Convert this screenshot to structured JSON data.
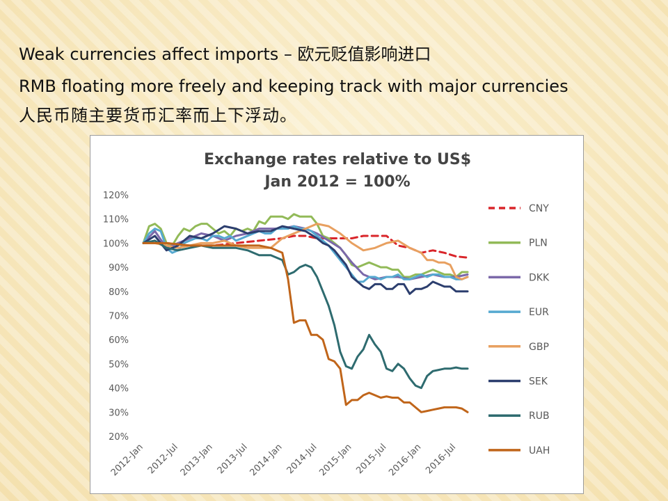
{
  "slide": {
    "line1": "Weak currencies affect imports – 欧元贬值影响进口",
    "line2": "RMB floating more freely and keeping track with major currencies",
    "line3": "人民币随主要货币汇率而上下浮动。"
  },
  "chart_data": {
    "type": "line",
    "title": "Exchange rates relative to US$",
    "subtitle": "Jan 2012 = 100%",
    "ylim": [
      20,
      120
    ],
    "yticks": [
      {
        "v": 20,
        "label": "20%"
      },
      {
        "v": 30,
        "label": "30%"
      },
      {
        "v": 40,
        "label": "40%"
      },
      {
        "v": 50,
        "label": "50%"
      },
      {
        "v": 60,
        "label": "60%"
      },
      {
        "v": 70,
        "label": "70%"
      },
      {
        "v": 80,
        "label": "80%"
      },
      {
        "v": 90,
        "label": "90%"
      },
      {
        "v": 100,
        "label": "100%"
      },
      {
        "v": 110,
        "label": "110%"
      },
      {
        "v": 120,
        "label": "120%"
      }
    ],
    "xticks": [
      {
        "t": 0,
        "label": "2012-Jan"
      },
      {
        "t": 6,
        "label": "2012-Jul"
      },
      {
        "t": 12,
        "label": "2013-Jan"
      },
      {
        "t": 18,
        "label": "2013-Jul"
      },
      {
        "t": 24,
        "label": "2014-Jan"
      },
      {
        "t": 30,
        "label": "2014-Jul"
      },
      {
        "t": 36,
        "label": "2015-Jan"
      },
      {
        "t": 42,
        "label": "2015-Jul"
      },
      {
        "t": 48,
        "label": "2016-Jan"
      },
      {
        "t": 54,
        "label": "2016-Jul"
      }
    ],
    "xlim": [
      0,
      56
    ],
    "grid": false,
    "legend": "right",
    "series": [
      {
        "name": "CNY",
        "color": "#d9252a",
        "dash": true,
        "t": [
          0,
          4,
          8,
          12,
          16,
          20,
          24,
          26,
          28,
          30,
          32,
          34,
          36,
          38,
          40,
          42,
          44,
          46,
          48,
          50,
          52,
          54,
          56
        ],
        "values": [
          100,
          100,
          99,
          99,
          100,
          101,
          102,
          103,
          103,
          102,
          102,
          102,
          102,
          103,
          103,
          103,
          99,
          98,
          96,
          97,
          96,
          94.5,
          94
        ]
      },
      {
        "name": "PLN",
        "color": "#92ba58",
        "t": [
          0,
          1,
          2,
          3,
          4,
          5,
          6,
          7,
          8,
          9,
          10,
          11,
          12,
          13,
          14,
          15,
          16,
          17,
          18,
          19,
          20,
          21,
          22,
          23,
          24,
          25,
          26,
          27,
          28,
          29,
          30,
          31,
          32,
          33,
          34,
          35,
          36,
          37,
          38,
          39,
          40,
          41,
          42,
          43,
          44,
          45,
          46,
          47,
          48,
          49,
          50,
          51,
          52,
          53,
          54,
          55,
          56
        ],
        "values": [
          100,
          107,
          108,
          106,
          100,
          99,
          103,
          106,
          105,
          107,
          108,
          108,
          106,
          104,
          105,
          103,
          106,
          105,
          106,
          105,
          109,
          108,
          111,
          111,
          111,
          110,
          112,
          111,
          111,
          111,
          108,
          103,
          102,
          100,
          98,
          95,
          91,
          90,
          91,
          92,
          91,
          90,
          90,
          89,
          89,
          86,
          86,
          87,
          87,
          88,
          89,
          88,
          87,
          87,
          86,
          88,
          88
        ]
      },
      {
        "name": "DKK",
        "color": "#7b68a9",
        "t": [
          0,
          2,
          4,
          6,
          8,
          10,
          12,
          14,
          16,
          18,
          20,
          22,
          24,
          26,
          28,
          30,
          32,
          34,
          36,
          38,
          40,
          42,
          44,
          46,
          48,
          50,
          52,
          54,
          56
        ],
        "values": [
          100,
          105,
          98,
          100,
          102,
          104,
          103,
          101,
          103,
          104,
          106,
          106,
          106,
          107,
          106,
          104,
          101,
          98,
          92,
          87,
          85,
          86,
          86,
          85,
          86,
          87,
          86,
          86,
          87
        ]
      },
      {
        "name": "EUR",
        "color": "#56a9d0",
        "t": [
          0,
          1,
          2,
          3,
          4,
          5,
          6,
          7,
          8,
          9,
          10,
          11,
          12,
          13,
          14,
          15,
          16,
          17,
          18,
          19,
          20,
          21,
          22,
          23,
          24,
          25,
          26,
          27,
          28,
          29,
          30,
          31,
          32,
          33,
          34,
          35,
          36,
          37,
          38,
          39,
          40,
          41,
          42,
          43,
          44,
          45,
          46,
          47,
          48,
          49,
          50,
          51,
          52,
          53,
          54,
          55,
          56
        ],
        "values": [
          100,
          104,
          106,
          105,
          98,
          96,
          97,
          100,
          101,
          102,
          102,
          101,
          103,
          103,
          102,
          103,
          101,
          102,
          103,
          104,
          105,
          104,
          104,
          106,
          106,
          106,
          107,
          106,
          106,
          105,
          103,
          101,
          99,
          96,
          93,
          90,
          87,
          84,
          84,
          86,
          86,
          85,
          86,
          86,
          87,
          85,
          85,
          86,
          87,
          86,
          87,
          87,
          86,
          86,
          85,
          85,
          86
        ]
      },
      {
        "name": "GBP",
        "color": "#e8a060",
        "t": [
          0,
          2,
          4,
          6,
          8,
          10,
          12,
          14,
          16,
          18,
          20,
          22,
          24,
          26,
          28,
          30,
          32,
          34,
          36,
          38,
          40,
          42,
          44,
          46,
          48,
          49,
          50,
          51,
          52,
          53,
          54,
          55,
          56
        ],
        "values": [
          100,
          100,
          99,
          98,
          99,
          100,
          100,
          101,
          99,
          98,
          98,
          98,
          102,
          104,
          106,
          108,
          107,
          104,
          100,
          97,
          98,
          100,
          101,
          98,
          96,
          93,
          93,
          92,
          92,
          91,
          86,
          85,
          86
        ]
      },
      {
        "name": "SEK",
        "color": "#2c3e6e",
        "t": [
          0,
          2,
          4,
          6,
          8,
          10,
          12,
          14,
          16,
          18,
          20,
          22,
          24,
          26,
          28,
          30,
          31,
          32,
          33,
          34,
          35,
          36,
          37,
          38,
          39,
          40,
          41,
          42,
          43,
          44,
          45,
          46,
          47,
          48,
          49,
          50,
          51,
          52,
          53,
          54,
          55,
          56
        ],
        "values": [
          100,
          103,
          97,
          99,
          103,
          102,
          104,
          107,
          106,
          104,
          105,
          105,
          107,
          106,
          105,
          102,
          100,
          99,
          97,
          94,
          91,
          86,
          84,
          82,
          81,
          83,
          83,
          81,
          81,
          83,
          83,
          79,
          81,
          81,
          82,
          84,
          83,
          82,
          82,
          80,
          80,
          80
        ]
      },
      {
        "name": "RUB",
        "color": "#2e6b6f",
        "t": [
          0,
          2,
          4,
          6,
          8,
          10,
          12,
          14,
          16,
          18,
          20,
          22,
          24,
          25,
          26,
          27,
          28,
          29,
          30,
          31,
          32,
          33,
          34,
          35,
          36,
          37,
          38,
          39,
          40,
          41,
          42,
          43,
          44,
          45,
          46,
          47,
          48,
          49,
          50,
          51,
          52,
          53,
          54,
          55,
          56
        ],
        "values": [
          100,
          101,
          98,
          97,
          98,
          99,
          98,
          98,
          98,
          97,
          95,
          95,
          93,
          87,
          88,
          90,
          91,
          90,
          86,
          80,
          74,
          66,
          55,
          49,
          48,
          53,
          56,
          62,
          58,
          55,
          48,
          47,
          50,
          48,
          44,
          41,
          40,
          45,
          47,
          47.5,
          48,
          48,
          48.5,
          48,
          48
        ]
      },
      {
        "name": "UAH",
        "color": "#c0651a",
        "t": [
          0,
          4,
          8,
          12,
          16,
          20,
          22,
          24,
          25,
          26,
          27,
          28,
          29,
          30,
          31,
          32,
          33,
          34,
          35,
          36,
          37,
          38,
          39,
          40,
          41,
          42,
          43,
          44,
          45,
          46,
          47,
          48,
          49,
          50,
          51,
          52,
          53,
          54,
          55,
          56
        ],
        "values": [
          100,
          100,
          99,
          99,
          99,
          99,
          98,
          96,
          85,
          67,
          68,
          68,
          62,
          62,
          60,
          52,
          51,
          48,
          33,
          35,
          35,
          37,
          38,
          37,
          36,
          36.5,
          36,
          36,
          34,
          34,
          32,
          30,
          30.5,
          31,
          31.5,
          32,
          32,
          32,
          31.5,
          30
        ]
      }
    ]
  }
}
